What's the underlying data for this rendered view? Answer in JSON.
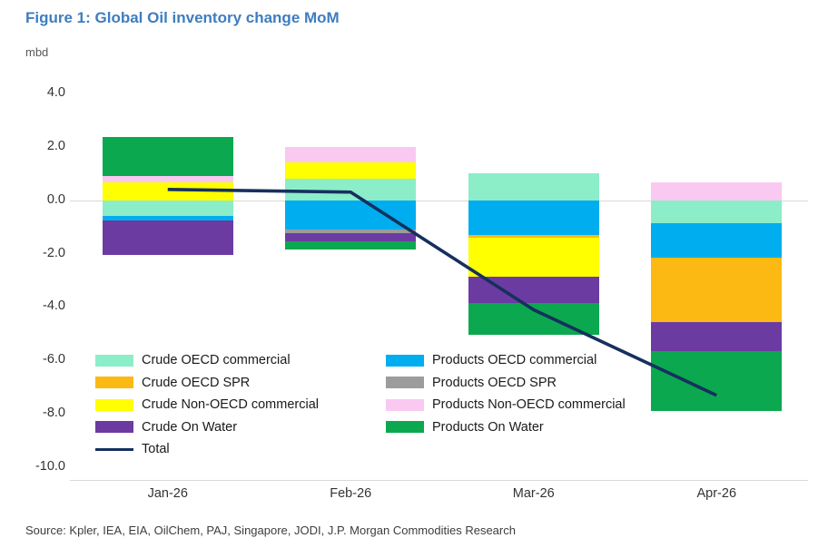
{
  "header": {
    "title": "Figure 1: Global Oil inventory change MoM",
    "title_color": "#3e7dbf",
    "unit_label": "mbd"
  },
  "footer": {
    "source": "Source: Kpler, IEA, EIA, OilChem, PAJ, Singapore, JODI, J.P. Morgan Commodities Research"
  },
  "chart_data": {
    "type": "bar",
    "stacked": true,
    "title": "Figure 1: Global Oil inventory change MoM",
    "ylabel": "mbd",
    "categories": [
      "Jan-26",
      "Feb-26",
      "Mar-26",
      "Apr-26"
    ],
    "y_ticks": [
      "4.0",
      "2.0",
      "0.0",
      "-2.0",
      "-4.0",
      "-6.0",
      "-8.0",
      "-10.0"
    ],
    "y_tick_values": [
      4,
      2,
      0,
      -2,
      -4,
      -6,
      -8,
      -10
    ],
    "ylim": [
      -10.5,
      4.5
    ],
    "grid": "zero-line-only",
    "zero_line_color": "#d9d9d9",
    "series": [
      {
        "name": "Crude OECD commercial",
        "color": "#8cedc9",
        "values": [
          -0.6,
          0.8,
          1.0,
          -0.85
        ]
      },
      {
        "name": "Products OECD commercial",
        "color": "#00aeef",
        "values": [
          -0.15,
          -1.1,
          -1.3,
          -1.3
        ]
      },
      {
        "name": "Products OECD SPR",
        "color": "#9c9c9c",
        "values": [
          0,
          -0.15,
          0,
          0
        ]
      },
      {
        "name": "Crude OECD SPR",
        "color": "#fdb913",
        "values": [
          0,
          0,
          -0.1,
          -2.4
        ]
      },
      {
        "name": "Crude Non-OECD commercial",
        "color": "#ffff00",
        "values": [
          0.65,
          0.6,
          -1.45,
          0
        ]
      },
      {
        "name": "Crude On Water",
        "color": "#6c3ba2",
        "values": [
          -1.3,
          -0.3,
          -1.0,
          -1.1
        ]
      },
      {
        "name": "Products Non-OECD commercial",
        "color": "#f9c9f2",
        "values": [
          0.25,
          0.6,
          0,
          0.65
        ]
      },
      {
        "name": "Products On Water",
        "color": "#0ca84f",
        "values": [
          1.45,
          -0.3,
          -1.2,
          -2.25
        ]
      }
    ],
    "total_line": {
      "name": "Total",
      "color": "#16305e",
      "values": [
        0.4,
        0.3,
        -4.1,
        -7.3
      ]
    },
    "legend": {
      "position": "bottom-left-inside",
      "left_column": [
        "Crude OECD commercial",
        "Crude OECD SPR",
        "Crude Non-OECD commercial",
        "Crude On Water",
        "Total"
      ],
      "right_column": [
        "Products OECD commercial",
        "Products OECD SPR",
        "Products Non-OECD commercial",
        "Products On Water"
      ]
    }
  }
}
